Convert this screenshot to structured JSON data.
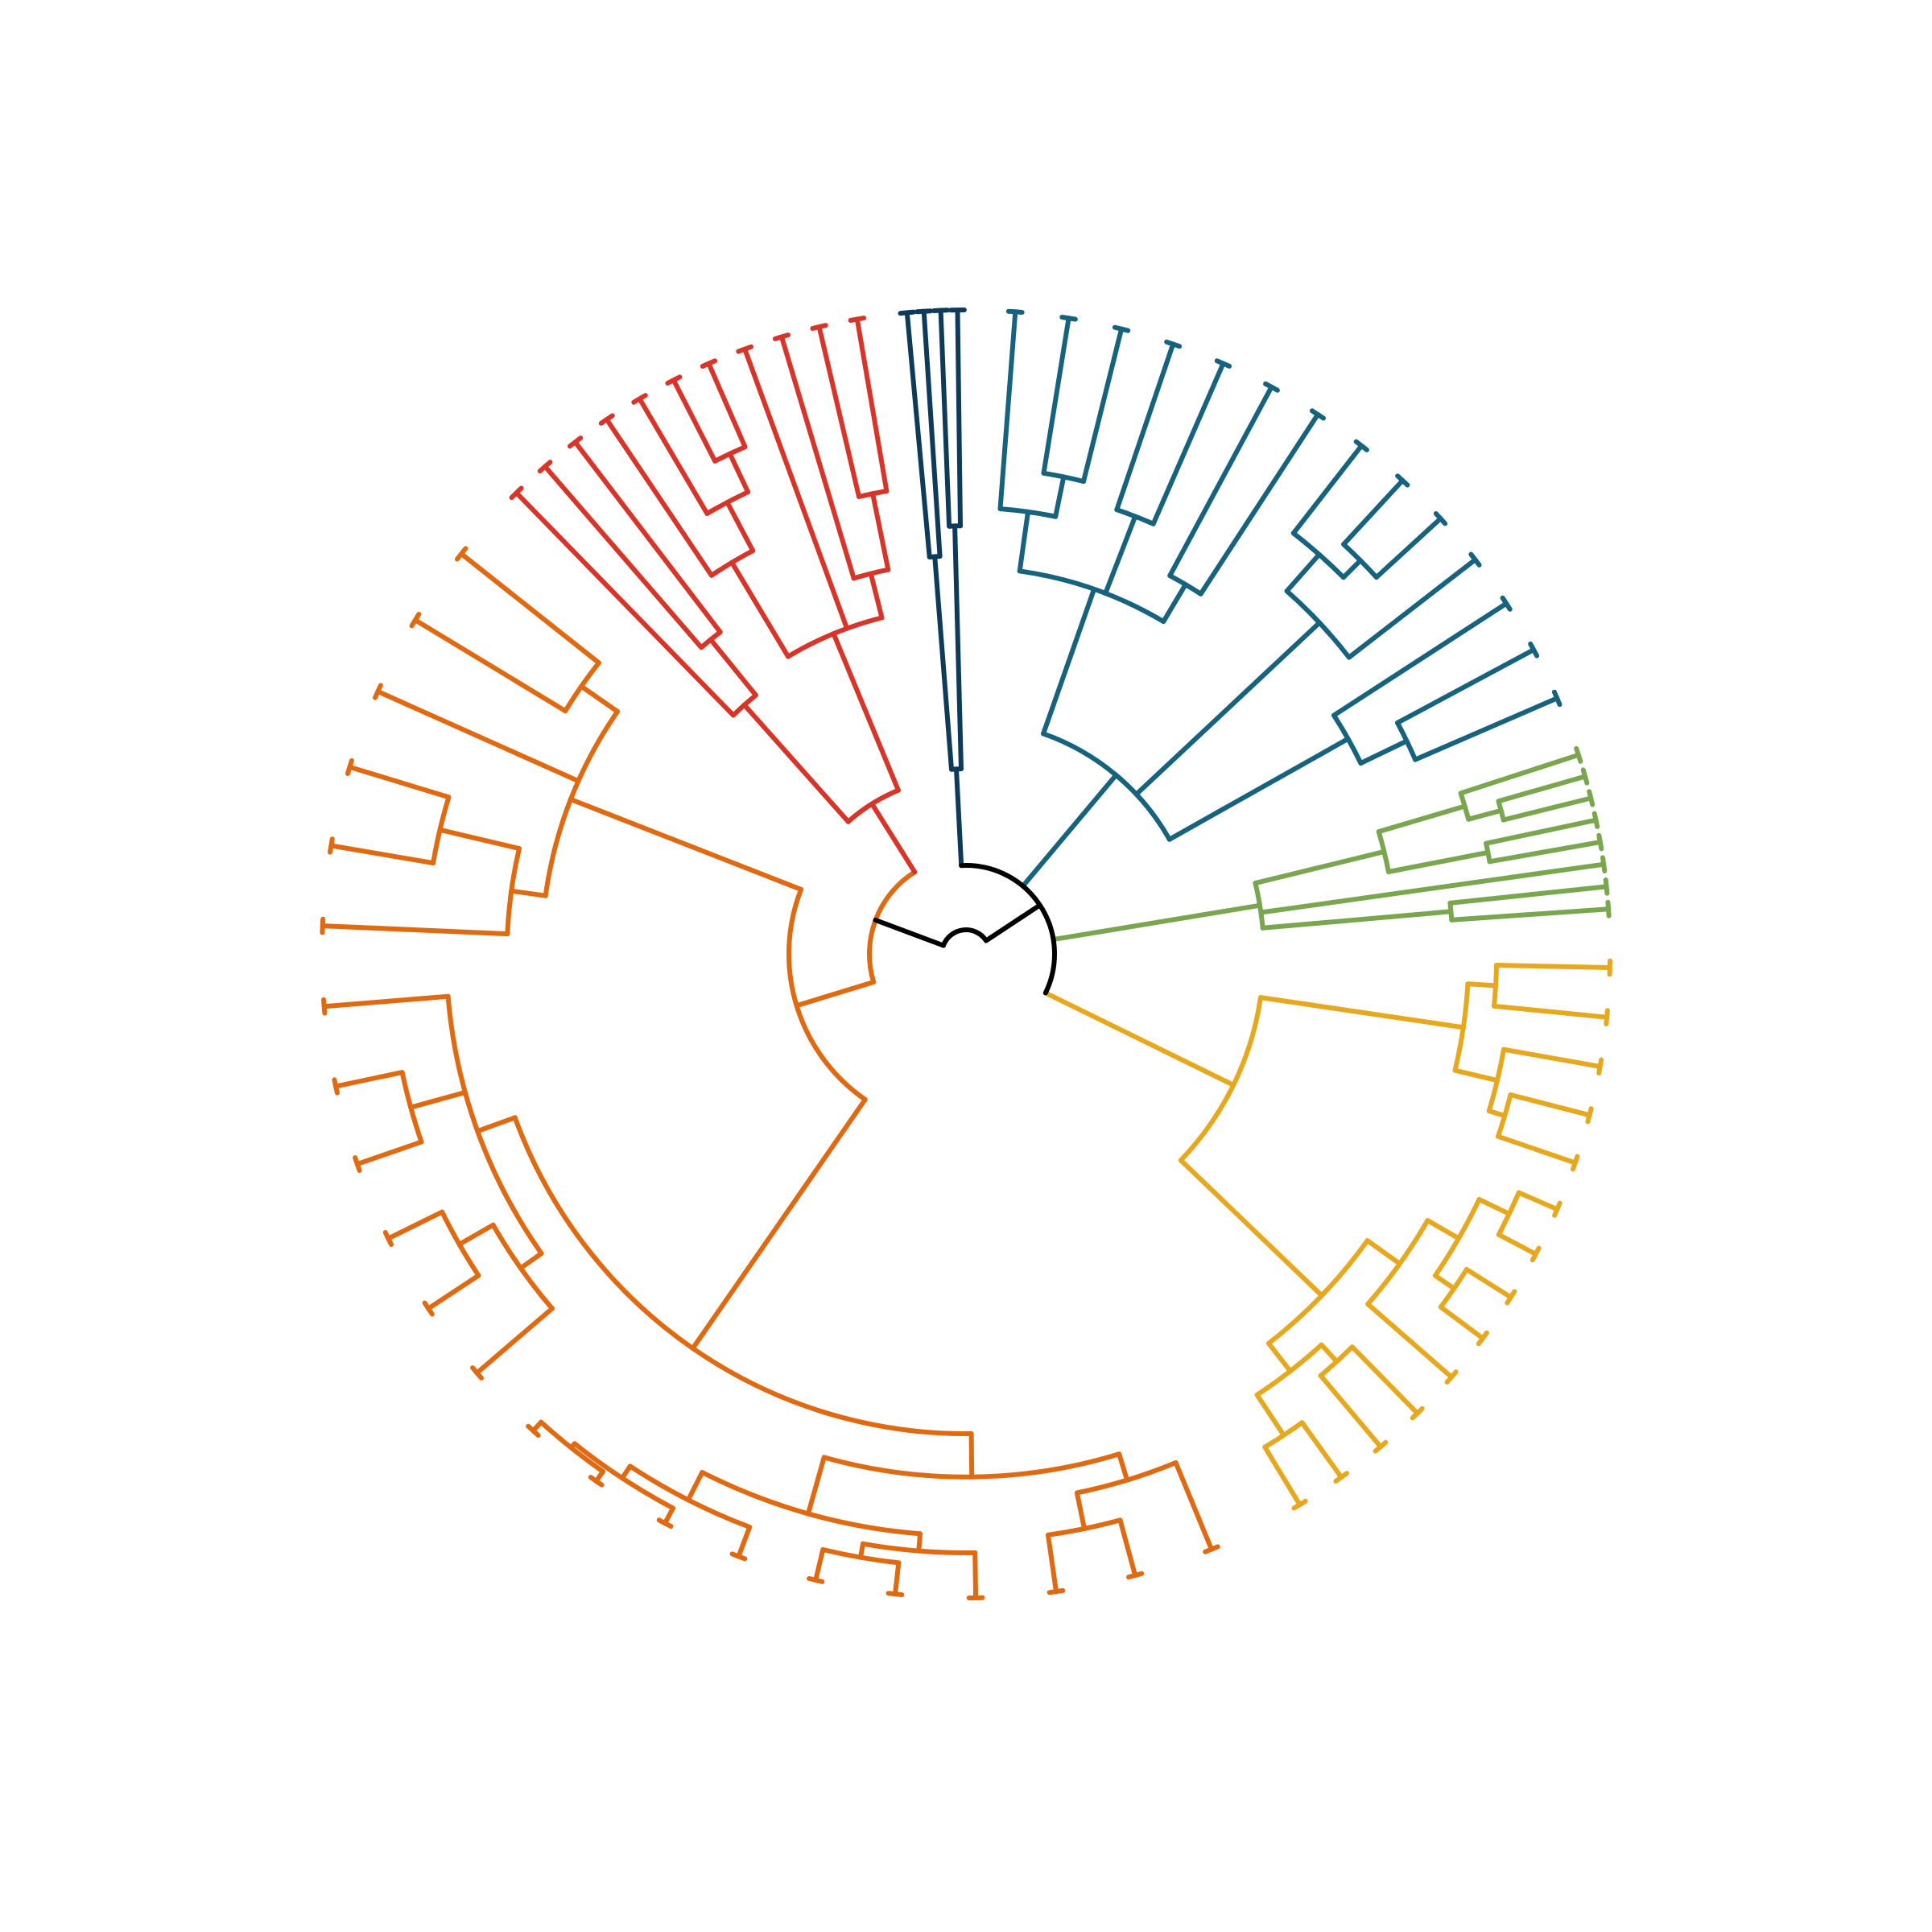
{
  "diagram": {
    "type": "circular-dendrogram",
    "root_color": "#000000",
    "clades": [
      {
        "name": "navy",
        "color": "#0e3b5c",
        "leaves": 4
      },
      {
        "name": "teal",
        "color": "#17637e",
        "leaves": 14
      },
      {
        "name": "green",
        "color": "#7aa650",
        "leaves": 8
      },
      {
        "name": "yellow",
        "color": "#e6a81e",
        "leaves": 14
      },
      {
        "name": "orange",
        "color": "#e06a12",
        "leaves": 22
      },
      {
        "name": "red",
        "color": "#d8352a",
        "leaves": 11
      }
    ]
  }
}
